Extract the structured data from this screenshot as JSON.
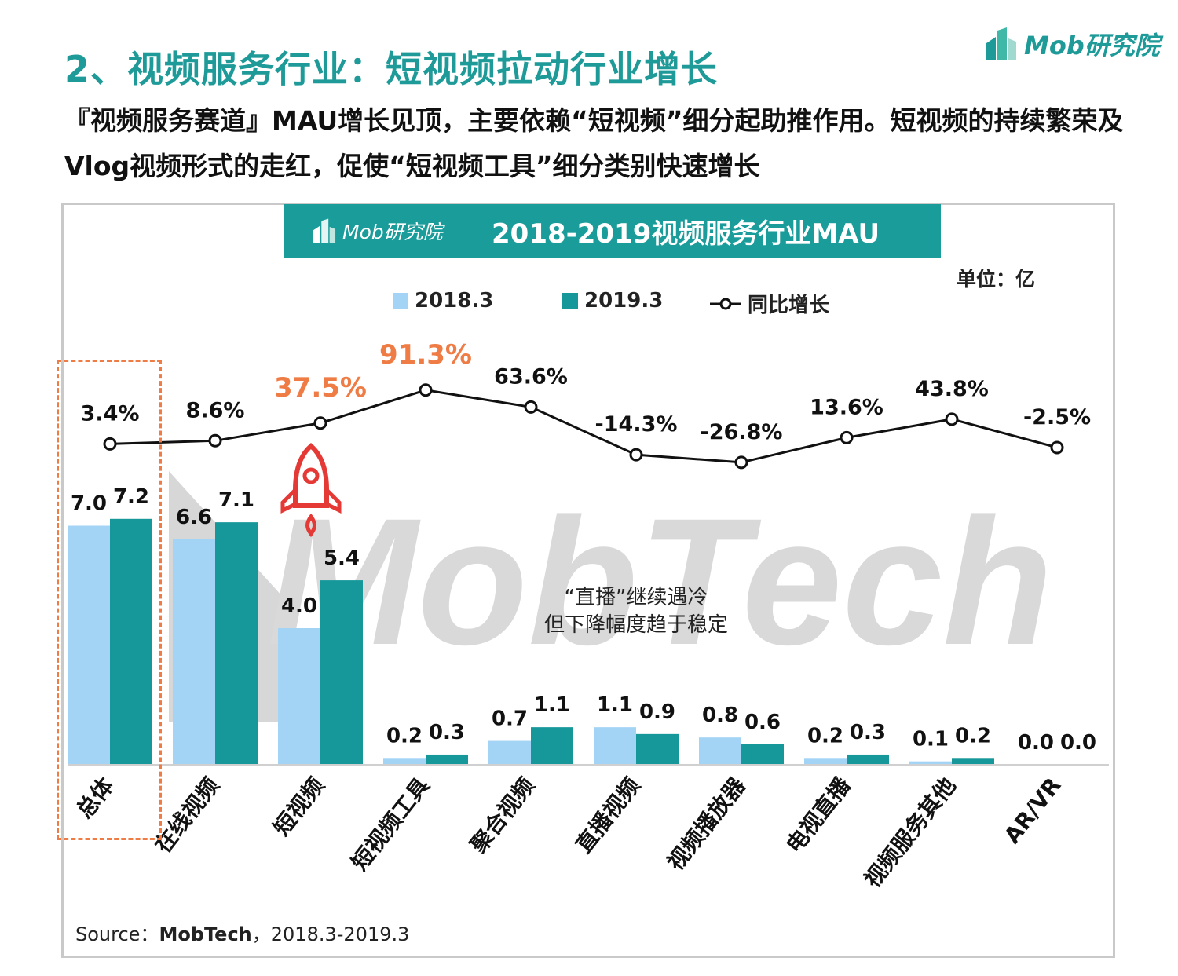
{
  "header": {
    "title": "2、视频服务行业：短视频拉动行业增长",
    "subtitle": "『视频服务赛道』MAU增长见顶，主要依赖“短视频”细分起助推作用。短视频的持续繁荣及Vlog视频形式的走红，促使“短视频工具”细分类别快速增长",
    "brand": "Mob研究院"
  },
  "chart_banner": {
    "brand": "Mob研究院",
    "title": "2018-2019视频服务行业MAU"
  },
  "unit": "单位：亿",
  "legend": {
    "items": [
      {
        "label": "2018.3",
        "color": "#a3d3f5"
      },
      {
        "label": "2019.3",
        "color": "#16979a"
      },
      {
        "label": "同比增长",
        "color": "#111111"
      }
    ]
  },
  "annotation": {
    "line1": "“直播”继续遇冷",
    "line2": "但下降幅度趋于稳定"
  },
  "watermark": "MobTech",
  "source": {
    "prefix": "Source：",
    "name": "MobTech",
    "suffix": "，2018.3-2019.3"
  },
  "colors": {
    "accent": "#1e9a98",
    "highlight": "#ee7c44",
    "bar_2018": "#a3d3f5",
    "bar_2019": "#16979a"
  },
  "chart_data": {
    "type": "bar",
    "title": "2018-2019视频服务行业MAU",
    "categories": [
      "总体",
      "在线视频",
      "短视频",
      "短视频工具",
      "聚合视频",
      "直播视频",
      "视频播放器",
      "电视直播",
      "视频服务其他",
      "AR/VR"
    ],
    "series": [
      {
        "name": "2018.3",
        "values": [
          7.0,
          6.6,
          4.0,
          0.2,
          0.7,
          1.1,
          0.8,
          0.2,
          0.1,
          0.0
        ],
        "labels": [
          "7.0",
          "6.6",
          "4.0",
          "0.2",
          "0.7",
          "1.1",
          "0.8",
          "0.2",
          "0.1",
          "0.0"
        ]
      },
      {
        "name": "2019.3",
        "values": [
          7.2,
          7.1,
          5.4,
          0.3,
          1.1,
          0.9,
          0.6,
          0.3,
          0.2,
          0.0
        ],
        "labels": [
          "7.2",
          "7.1",
          "5.4",
          "0.3",
          "1.1",
          "0.9",
          "0.6",
          "0.3",
          "0.2",
          "0.0"
        ]
      }
    ],
    "growth": {
      "name": "同比增长",
      "values": [
        3.4,
        8.6,
        37.5,
        91.3,
        63.6,
        -14.3,
        -26.8,
        13.6,
        43.8,
        -2.5
      ],
      "labels": [
        "3.4%",
        "8.6%",
        "37.5%",
        "91.3%",
        "63.6%",
        "-14.3%",
        "-26.8%",
        "13.6%",
        "43.8%",
        "-2.5%"
      ],
      "highlighted": [
        2,
        3
      ]
    },
    "highlight_category": "总体",
    "ylabel": "",
    "unit": "亿"
  }
}
